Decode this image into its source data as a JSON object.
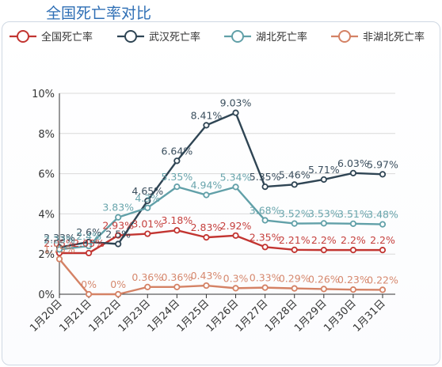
{
  "page": {
    "title": "全国死亡率对比"
  },
  "chart_data": {
    "type": "line",
    "categories": [
      "1月20日",
      "1月21日",
      "1月22日",
      "1月23日",
      "1月24日",
      "1月25日",
      "1月26日",
      "1月27日",
      "1月28日",
      "1月29日",
      "1月30日",
      "1月31日"
    ],
    "ylim": [
      0,
      10
    ],
    "yticks": [
      "0%",
      "2%",
      "4%",
      "6%",
      "8%",
      "10%"
    ],
    "grid": true,
    "legend_position": "top",
    "series": [
      {
        "name": "全国死亡率",
        "color": "#c23531",
        "values": [
          2.05,
          2.05,
          2.93,
          3.01,
          3.18,
          2.83,
          2.92,
          2.35,
          2.21,
          2.2,
          2.2,
          2.2
        ],
        "labels": [
          "2.05%",
          "2.05%",
          "2.93%",
          "3.01%",
          "3.18%",
          "2.83%",
          "2.92%",
          "2.35%",
          "2.21%",
          "2.2%",
          "2.2%",
          "2.2%"
        ]
      },
      {
        "name": "武汉死亡率",
        "color": "#2f4554",
        "values": [
          2.33,
          2.6,
          2.5,
          4.65,
          6.64,
          8.41,
          9.03,
          5.35,
          5.46,
          5.71,
          6.03,
          5.97
        ],
        "labels": [
          "2.33%",
          "2.6%",
          "2.5%",
          "4.65%",
          "6.64%",
          "8.41%",
          "9.03%",
          "5.35%",
          "5.46%",
          "5.71%",
          "6.03%",
          "5.97%"
        ]
      },
      {
        "name": "湖北死亡率",
        "color": "#61a0a8",
        "values": [
          2.23,
          2.4,
          3.83,
          4.3,
          5.35,
          4.94,
          5.34,
          3.68,
          3.52,
          3.53,
          3.51,
          3.48
        ],
        "labels": [
          "2.23%",
          "2.4%",
          "3.83%",
          "4.3%",
          "5.35%",
          "4.94%",
          "5.34%",
          "3.68%",
          "3.52%",
          "3.53%",
          "3.51%",
          "3.48%"
        ]
      },
      {
        "name": "非湖北死亡率",
        "color": "#d48265",
        "values": [
          1.75,
          0,
          0,
          0.36,
          0.36,
          0.43,
          0.3,
          0.33,
          0.29,
          0.26,
          0.23,
          0.22
        ],
        "labels": [
          "1.75%",
          "0%",
          "0%",
          "0.36%",
          "0.36%",
          "0.43%",
          "0.3%",
          "0.33%",
          "0.29%",
          "0.26%",
          "0.23%",
          "0.22%"
        ]
      }
    ]
  }
}
